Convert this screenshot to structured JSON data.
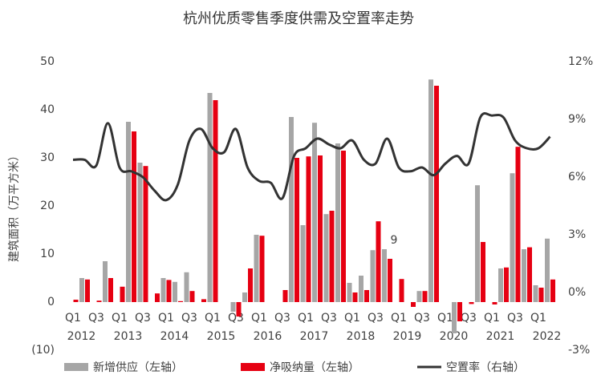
{
  "chart_data": {
    "type": "bar-line",
    "title": "杭州优质零售季度供需及空置率走势",
    "y_label": "建筑面积（万平方米）",
    "annotation": "9",
    "categories": [
      "Q1",
      null,
      "Q3",
      null,
      "Q1",
      null,
      "Q3",
      null,
      "Q1",
      null,
      "Q3",
      null,
      "Q1",
      null,
      "Q3",
      null,
      "Q1",
      null,
      "Q3",
      null,
      "Q1",
      null,
      "Q3",
      null,
      "Q1",
      null,
      "Q3",
      null,
      "Q1",
      null,
      "Q3",
      null,
      "Q1",
      null,
      "Q3",
      null,
      "Q1",
      null,
      "Q3",
      null,
      "Q1",
      null
    ],
    "years": [
      "2012",
      "2013",
      "2014",
      "2015",
      "2016",
      "2017",
      "2018",
      "2019",
      "2020",
      "2021",
      "2022"
    ],
    "ylim": [
      -10,
      50
    ],
    "yticks": [
      {
        "value": -10,
        "label": "(10)"
      },
      0,
      10,
      20,
      30,
      40,
      50
    ],
    "y2lim": [
      -3,
      12
    ],
    "y2ticks": [
      {
        "value": -3,
        "label": "-3%"
      },
      {
        "value": 0,
        "label": "0%"
      },
      {
        "value": 3,
        "label": "3%"
      },
      {
        "value": 6,
        "label": "6%"
      },
      {
        "value": 9,
        "label": "9%"
      },
      {
        "value": 12,
        "label": "12%"
      }
    ],
    "series": [
      {
        "name": "新增供应（左轴）",
        "type": "bar",
        "color": "#a6a6a6",
        "values": [
          0,
          5,
          0,
          8.5,
          0,
          37.5,
          29,
          0,
          5,
          4.2,
          6.2,
          0,
          43.5,
          0,
          -2,
          2,
          14,
          0,
          0,
          38.5,
          16,
          37.3,
          18.3,
          33,
          4,
          5.5,
          10.8,
          11,
          0,
          0,
          2.3,
          46.3,
          0,
          -6.5,
          0,
          24.3,
          0,
          7,
          26.8,
          11,
          3.5,
          13.2
        ]
      },
      {
        "name": "净吸纳量（左轴）",
        "type": "bar",
        "color": "#e60012",
        "values": [
          0.5,
          4.7,
          0.3,
          5,
          3.2,
          35.5,
          28.3,
          1.8,
          4.6,
          0.2,
          2.3,
          0.6,
          42,
          0,
          -3,
          7,
          13.8,
          0,
          2.5,
          30,
          30.3,
          30.5,
          19,
          31.5,
          2,
          2.5,
          16.8,
          9,
          4.8,
          -1,
          2.3,
          45,
          0,
          -4,
          -0.4,
          12.5,
          -0.5,
          7.2,
          32.3,
          11.4,
          3,
          4.7
        ]
      },
      {
        "name": "空置率（右轴）",
        "type": "line",
        "axis": "y2",
        "color": "#333333",
        "values": [
          6.9,
          6.9,
          6.6,
          8.8,
          6.5,
          6.3,
          6.0,
          5.3,
          4.8,
          5.6,
          7.9,
          8.5,
          7.5,
          7.3,
          8.5,
          6.5,
          5.8,
          5.7,
          4.9,
          7.1,
          7.5,
          8.0,
          7.7,
          7.5,
          7.9,
          6.9,
          6.7,
          8.0,
          6.5,
          6.3,
          6.5,
          6.1,
          6.7,
          7.1,
          6.7,
          9.1,
          9.2,
          9.1,
          7.9,
          7.5,
          7.5,
          8.1
        ]
      }
    ]
  }
}
